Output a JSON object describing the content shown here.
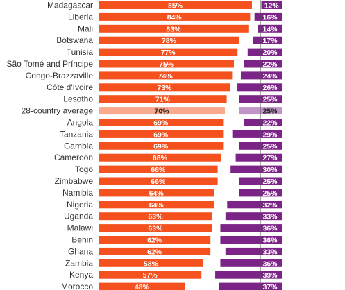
{
  "chart_data": {
    "type": "bar",
    "orientation": "horizontal",
    "value_suffix": "%",
    "categories": [
      "Madagascar",
      "Liberia",
      "Mali",
      "Botswana",
      "Tunisia",
      "São Tomé and Príncipe",
      "Congo-Brazzaville",
      "Côte d'Ivoire",
      "Lesotho",
      "28-country average",
      "Angola",
      "Tanzania",
      "Gambia",
      "Cameroon",
      "Togo",
      "Zimbabwe",
      "Namibia",
      "Nigeria",
      "Uganda",
      "Malawi",
      "Benin",
      "Ghana",
      "Zambia",
      "Kenya",
      "Morocco"
    ],
    "highlight_category": "28-country average",
    "series": [
      {
        "values": [
          85,
          84,
          83,
          78,
          77,
          75,
          74,
          73,
          71,
          70,
          69,
          69,
          69,
          68,
          66,
          66,
          64,
          64,
          63,
          63,
          62,
          62,
          58,
          57,
          48
        ]
      },
      {
        "values": [
          12,
          16,
          14,
          17,
          20,
          22,
          24,
          26,
          25,
          25,
          22,
          29,
          25,
          27,
          30,
          25,
          25,
          32,
          33,
          36,
          36,
          33,
          36,
          39,
          37
        ]
      }
    ],
    "xlim": [
      0,
      100
    ],
    "grid": false,
    "colors": {
      "left_bar": "#f4511e",
      "right_bar": "#7b2386",
      "left_bar_highlight": "#f9a98d",
      "right_bar_highlight": "#c196c6",
      "separator": "#555555"
    }
  }
}
